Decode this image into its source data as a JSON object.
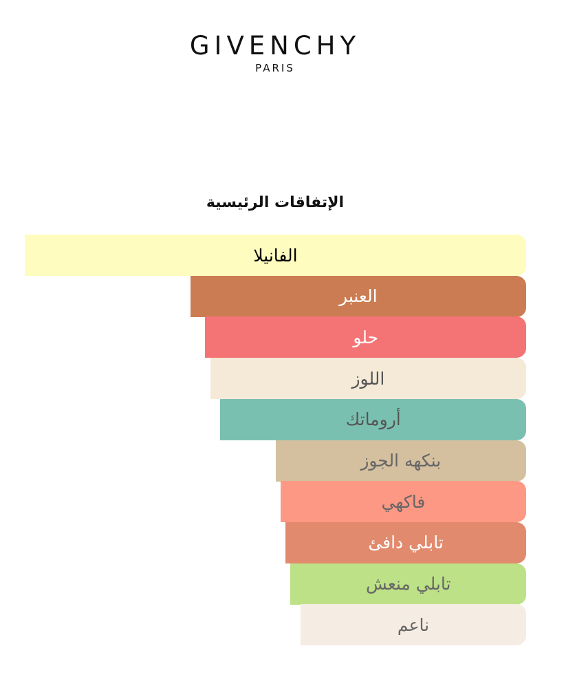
{
  "logo": {
    "brand": "GIVENCHY",
    "city": "PARIS"
  },
  "chart_data": {
    "type": "bar",
    "orientation": "horizontal",
    "title": "الإتفاقات الرئيسية",
    "xlim": [
      0,
      100
    ],
    "categories": [
      "الفانيلا",
      "العنبر",
      "حلو",
      "اللوز",
      "أروماتك",
      "بنكهه الجوز",
      "فاكهي",
      "تابلي دافئ",
      "تابلي منعش",
      "ناعم"
    ],
    "values": [
      100,
      67,
      64,
      63,
      61,
      50,
      49,
      48,
      47,
      45
    ],
    "colors": [
      "#fefcbf",
      "#cc7c52",
      "#f47374",
      "#f4ead7",
      "#7ac0b0",
      "#d4c09f",
      "#fd9885",
      "#e28a6e",
      "#bde186",
      "#f5ece3"
    ],
    "label_colors": [
      "#000000",
      "#ffffff",
      "#ffffff",
      "#555555",
      "#555555",
      "#666666",
      "#666666",
      "#ffffff",
      "#666666",
      "#666666"
    ]
  }
}
